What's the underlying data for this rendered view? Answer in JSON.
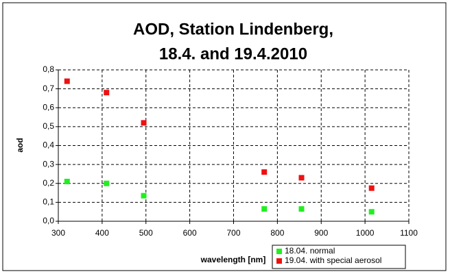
{
  "chart_data": {
    "type": "scatter",
    "title": [
      "AOD, Station Lindenberg,",
      "18.4. and 19.4.2010"
    ],
    "x_label": "wavelength [nm]",
    "y_label": "aod",
    "series": [
      {
        "name": "18.04. normal",
        "color": "#22ee22",
        "x": [
          320,
          410,
          495,
          770,
          855,
          1015
        ],
        "values": [
          0.21,
          0.2,
          0.135,
          0.065,
          0.065,
          0.05
        ]
      },
      {
        "name": "19.04. with special aerosol",
        "color": "#ee1111",
        "x": [
          320,
          410,
          495,
          770,
          855,
          1015
        ],
        "values": [
          0.74,
          0.68,
          0.52,
          0.26,
          0.23,
          0.175
        ]
      }
    ],
    "xlim": [
      300,
      1100
    ],
    "xticks": [
      300,
      400,
      500,
      600,
      700,
      800,
      900,
      1000,
      1100
    ],
    "ylim": [
      0,
      0.8
    ],
    "yticks": [
      {
        "value": 0,
        "label": "0,0"
      },
      {
        "value": 0.1,
        "label": "0,1"
      },
      {
        "value": 0.2,
        "label": "0,2"
      },
      {
        "value": 0.3,
        "label": "0,3"
      },
      {
        "value": 0.4,
        "label": "0,4"
      },
      {
        "value": 0.5,
        "label": "0,5"
      },
      {
        "value": 0.6,
        "label": "0,6"
      },
      {
        "value": 0.7,
        "label": "0,7"
      },
      {
        "value": 0.8,
        "label": "0,8"
      }
    ],
    "grid": true,
    "legend": "lower right"
  }
}
